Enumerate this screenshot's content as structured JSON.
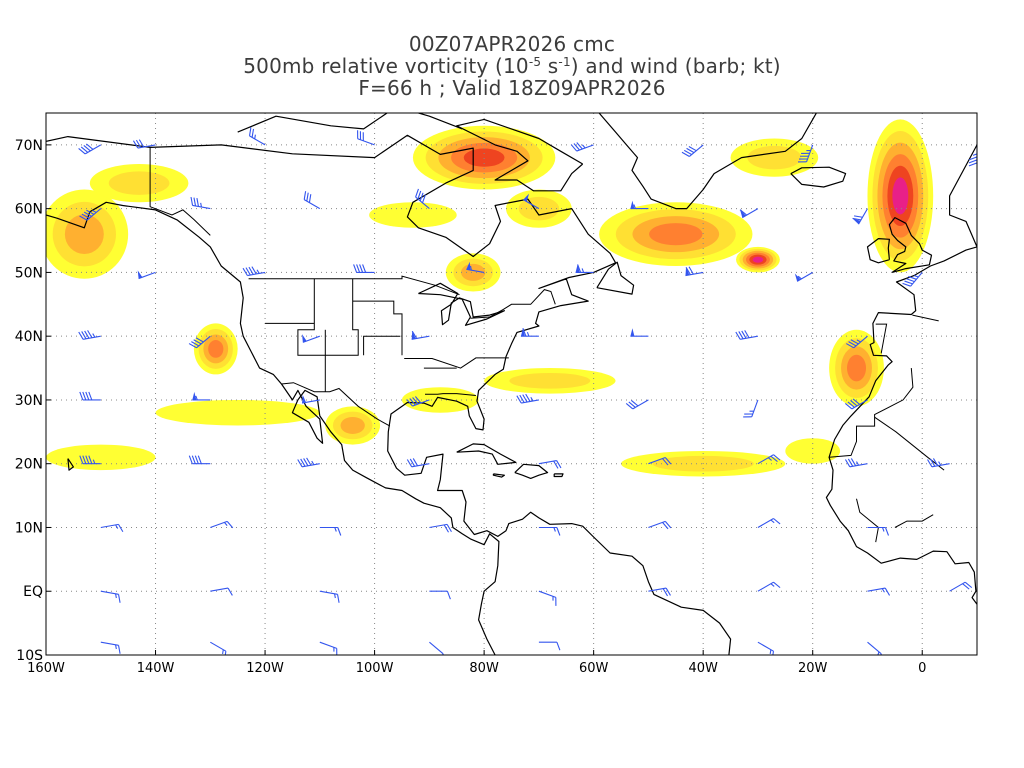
{
  "title": {
    "line1": "00Z07APR2026 cmc",
    "line2": {
      "prefix": "500mb relative vorticity (10",
      "exp1": "-5",
      "mid": " s",
      "exp2": "-1",
      "suffix": ") and wind (barb; kt)"
    },
    "line3": "F=66 h ; Valid 18Z09APR2026"
  },
  "map": {
    "lon_range": [
      -160,
      10
    ],
    "lat_range": [
      -10,
      75
    ],
    "lat_ticks": [
      {
        "value": 70,
        "label": "70N"
      },
      {
        "value": 60,
        "label": "60N"
      },
      {
        "value": 50,
        "label": "50N"
      },
      {
        "value": 40,
        "label": "40N"
      },
      {
        "value": 30,
        "label": "30N"
      },
      {
        "value": 20,
        "label": "20N"
      },
      {
        "value": 10,
        "label": "10N"
      },
      {
        "value": 0,
        "label": "EQ"
      },
      {
        "value": -10,
        "label": "10S"
      }
    ],
    "lon_ticks": [
      {
        "value": -160,
        "label": "160W"
      },
      {
        "value": -140,
        "label": "140W"
      },
      {
        "value": -120,
        "label": "120W"
      },
      {
        "value": -100,
        "label": "100W"
      },
      {
        "value": -80,
        "label": "80W"
      },
      {
        "value": -60,
        "label": "60W"
      },
      {
        "value": -40,
        "label": "40W"
      },
      {
        "value": -20,
        "label": "20W"
      },
      {
        "value": 0,
        "label": "0"
      }
    ],
    "grid": "dotted",
    "colors": {
      "level1": "#ffff33",
      "level2": "#ffe033",
      "level3": "#ffb030",
      "level4": "#ff8030",
      "level5": "#ee4420",
      "level6": "#e82088",
      "level7": "#f060ff",
      "barb": "#3355ee",
      "coast": "#000000",
      "grid": "#888888"
    }
  },
  "vorticity_features": [
    {
      "name": "gulf-of-alaska",
      "lon": -153,
      "lat": 56,
      "rx": 8,
      "ry": 7,
      "level": 3
    },
    {
      "name": "baffin-hudson",
      "lon": -80,
      "lat": 68,
      "rx": 13,
      "ry": 5,
      "level": 5
    },
    {
      "name": "north-atlantic-trough",
      "lon": -45,
      "lat": 56,
      "rx": 14,
      "ry": 5,
      "level": 4
    },
    {
      "name": "north-atlantic-low",
      "lon": -30,
      "lat": 52,
      "rx": 4,
      "ry": 2,
      "level": 6
    },
    {
      "name": "northeast-atlantic-band",
      "lon": -4,
      "lat": 62,
      "rx": 6,
      "ry": 12,
      "level": 6
    },
    {
      "name": "iberia-morocco",
      "lon": -12,
      "lat": 35,
      "rx": 5,
      "ry": 6,
      "level": 4
    },
    {
      "name": "offshore-california",
      "lon": -129,
      "lat": 38,
      "rx": 4,
      "ry": 4,
      "level": 4
    },
    {
      "name": "great-lakes",
      "lon": -82,
      "lat": 50,
      "rx": 5,
      "ry": 3,
      "level": 3
    },
    {
      "name": "north-pacific-band",
      "lon": -143,
      "lat": 64,
      "rx": 9,
      "ry": 3,
      "level": 2
    },
    {
      "name": "labrador",
      "lon": -70,
      "lat": 60,
      "rx": 6,
      "ry": 3,
      "level": 2
    },
    {
      "name": "west-atlantic-band",
      "lon": -68,
      "lat": 33,
      "rx": 12,
      "ry": 2,
      "level": 2
    },
    {
      "name": "subtropical-atlantic-band",
      "lon": -40,
      "lat": 20,
      "rx": 15,
      "ry": 2,
      "level": 2
    },
    {
      "name": "central-pacific-band",
      "lon": -125,
      "lat": 28,
      "rx": 15,
      "ry": 2,
      "level": 1
    },
    {
      "name": "mexico",
      "lon": -104,
      "lat": 26,
      "rx": 5,
      "ry": 3,
      "level": 3
    },
    {
      "name": "hawaii-band",
      "lon": -150,
      "lat": 21,
      "rx": 10,
      "ry": 2,
      "level": 1
    },
    {
      "name": "canada-east",
      "lon": -93,
      "lat": 59,
      "rx": 8,
      "ry": 2,
      "level": 1
    },
    {
      "name": "greenland-sea",
      "lon": -27,
      "lat": 68,
      "rx": 8,
      "ry": 3,
      "level": 2
    },
    {
      "name": "gulf-coast",
      "lon": -88,
      "lat": 30,
      "rx": 7,
      "ry": 2,
      "level": 1
    },
    {
      "name": "west-africa-coast",
      "lon": -20,
      "lat": 22,
      "rx": 5,
      "ry": 2,
      "level": 1
    }
  ],
  "wind_barbs": [
    {
      "lon": -150,
      "lat": 70,
      "dir": 240,
      "kt": 40
    },
    {
      "lon": -140,
      "lat": 70,
      "dir": 260,
      "kt": 30
    },
    {
      "lon": -120,
      "lat": 70,
      "dir": 300,
      "kt": 25
    },
    {
      "lon": -100,
      "lat": 70,
      "dir": 290,
      "kt": 30
    },
    {
      "lon": -60,
      "lat": 70,
      "dir": 250,
      "kt": 35
    },
    {
      "lon": -40,
      "lat": 70,
      "dir": 230,
      "kt": 40
    },
    {
      "lon": -20,
      "lat": 70,
      "dir": 200,
      "kt": 45
    },
    {
      "lon": 10,
      "lat": 70,
      "dir": 180,
      "kt": 35
    },
    {
      "lon": -150,
      "lat": 60,
      "dir": 230,
      "kt": 45
    },
    {
      "lon": -130,
      "lat": 60,
      "dir": 280,
      "kt": 35
    },
    {
      "lon": -110,
      "lat": 60,
      "dir": 300,
      "kt": 30
    },
    {
      "lon": -90,
      "lat": 60,
      "dir": 310,
      "kt": 40
    },
    {
      "lon": -70,
      "lat": 60,
      "dir": 300,
      "kt": 50
    },
    {
      "lon": -50,
      "lat": 60,
      "dir": 270,
      "kt": 55
    },
    {
      "lon": -30,
      "lat": 60,
      "dir": 240,
      "kt": 60
    },
    {
      "lon": -10,
      "lat": 60,
      "dir": 210,
      "kt": 70
    },
    {
      "lon": -140,
      "lat": 50,
      "dir": 250,
      "kt": 50
    },
    {
      "lon": -120,
      "lat": 50,
      "dir": 260,
      "kt": 45
    },
    {
      "lon": -100,
      "lat": 50,
      "dir": 270,
      "kt": 40
    },
    {
      "lon": -80,
      "lat": 50,
      "dir": 280,
      "kt": 55
    },
    {
      "lon": -60,
      "lat": 50,
      "dir": 270,
      "kt": 65
    },
    {
      "lon": -40,
      "lat": 50,
      "dir": 260,
      "kt": 70
    },
    {
      "lon": -20,
      "lat": 50,
      "dir": 240,
      "kt": 55
    },
    {
      "lon": 0,
      "lat": 50,
      "dir": 220,
      "kt": 45
    },
    {
      "lon": -150,
      "lat": 40,
      "dir": 260,
      "kt": 45
    },
    {
      "lon": -130,
      "lat": 40,
      "dir": 230,
      "kt": 40
    },
    {
      "lon": -110,
      "lat": 40,
      "dir": 250,
      "kt": 50
    },
    {
      "lon": -90,
      "lat": 40,
      "dir": 260,
      "kt": 60
    },
    {
      "lon": -70,
      "lat": 40,
      "dir": 270,
      "kt": 65
    },
    {
      "lon": -50,
      "lat": 40,
      "dir": 270,
      "kt": 50
    },
    {
      "lon": -30,
      "lat": 40,
      "dir": 260,
      "kt": 40
    },
    {
      "lon": -10,
      "lat": 40,
      "dir": 230,
      "kt": 35
    },
    {
      "lon": -150,
      "lat": 30,
      "dir": 270,
      "kt": 40
    },
    {
      "lon": -130,
      "lat": 30,
      "dir": 270,
      "kt": 55
    },
    {
      "lon": -110,
      "lat": 30,
      "dir": 260,
      "kt": 50
    },
    {
      "lon": -90,
      "lat": 30,
      "dir": 250,
      "kt": 40
    },
    {
      "lon": -70,
      "lat": 30,
      "dir": 260,
      "kt": 45
    },
    {
      "lon": -50,
      "lat": 30,
      "dir": 240,
      "kt": 30
    },
    {
      "lon": -30,
      "lat": 30,
      "dir": 200,
      "kt": 25
    },
    {
      "lon": -10,
      "lat": 30,
      "dir": 240,
      "kt": 40
    },
    {
      "lon": -150,
      "lat": 20,
      "dir": 270,
      "kt": 45
    },
    {
      "lon": -130,
      "lat": 20,
      "dir": 270,
      "kt": 40
    },
    {
      "lon": -110,
      "lat": 20,
      "dir": 260,
      "kt": 45
    },
    {
      "lon": -90,
      "lat": 20,
      "dir": 260,
      "kt": 30
    },
    {
      "lon": -70,
      "lat": 20,
      "dir": 80,
      "kt": 20
    },
    {
      "lon": -50,
      "lat": 20,
      "dir": 70,
      "kt": 20
    },
    {
      "lon": -30,
      "lat": 20,
      "dir": 60,
      "kt": 25
    },
    {
      "lon": -10,
      "lat": 20,
      "dir": 260,
      "kt": 35
    },
    {
      "lon": 5,
      "lat": 20,
      "dir": 260,
      "kt": 35
    },
    {
      "lon": -150,
      "lat": 10,
      "dir": 80,
      "kt": 15
    },
    {
      "lon": -130,
      "lat": 10,
      "dir": 70,
      "kt": 15
    },
    {
      "lon": -110,
      "lat": 10,
      "dir": 90,
      "kt": 15
    },
    {
      "lon": -90,
      "lat": 10,
      "dir": 80,
      "kt": 20
    },
    {
      "lon": -70,
      "lat": 10,
      "dir": 90,
      "kt": 15
    },
    {
      "lon": -50,
      "lat": 10,
      "dir": 70,
      "kt": 20
    },
    {
      "lon": -30,
      "lat": 10,
      "dir": 60,
      "kt": 15
    },
    {
      "lon": -10,
      "lat": 10,
      "dir": 90,
      "kt": 15
    },
    {
      "lon": -150,
      "lat": 0,
      "dir": 100,
      "kt": 15
    },
    {
      "lon": -130,
      "lat": 0,
      "dir": 80,
      "kt": 10
    },
    {
      "lon": -110,
      "lat": 0,
      "dir": 100,
      "kt": 15
    },
    {
      "lon": -90,
      "lat": 0,
      "dir": 90,
      "kt": 10
    },
    {
      "lon": -70,
      "lat": 0,
      "dir": 110,
      "kt": 15
    },
    {
      "lon": -50,
      "lat": 0,
      "dir": 80,
      "kt": 20
    },
    {
      "lon": -30,
      "lat": 0,
      "dir": 60,
      "kt": 15
    },
    {
      "lon": -10,
      "lat": 0,
      "dir": 80,
      "kt": 15
    },
    {
      "lon": 5,
      "lat": 0,
      "dir": 60,
      "kt": 20
    },
    {
      "lon": -150,
      "lat": -8,
      "dir": 100,
      "kt": 15
    },
    {
      "lon": -130,
      "lat": -8,
      "dir": 120,
      "kt": 15
    },
    {
      "lon": -110,
      "lat": -8,
      "dir": 110,
      "kt": 15
    },
    {
      "lon": -90,
      "lat": -8,
      "dir": 130,
      "kt": 10
    },
    {
      "lon": -70,
      "lat": -8,
      "dir": 90,
      "kt": 10
    },
    {
      "lon": -30,
      "lat": -8,
      "dir": 120,
      "kt": 15
    },
    {
      "lon": -10,
      "lat": -8,
      "dir": 130,
      "kt": 15
    }
  ]
}
